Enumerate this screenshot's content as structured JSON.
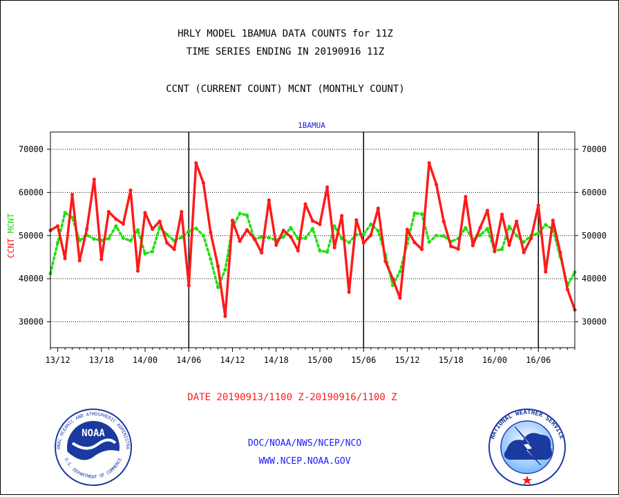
{
  "header": {
    "title_line1": "HRLY MODEL 1BAMUA DATA COUNTS for 11Z",
    "title_line2": "TIME SERIES ENDING IN 20190916 11Z",
    "subtitle": "CCNT (CURRENT COUNT) MCNT (MONTHLY COUNT)"
  },
  "footer": {
    "date_range": "DATE 20190913/1100 Z-20190916/1100 Z",
    "org": "DOC/NOAA/NWS/NCEP/NCO",
    "url": "WWW.NCEP.NOAA.GOV"
  },
  "logos": {
    "noaa_text": "NOAA",
    "noaa_ring_top": "NATIONAL OCEANIC AND ATMOSPHERIC ADMINISTRATION",
    "noaa_ring_bottom": "U.S. DEPARTMENT OF COMMERCE",
    "nws_ring": "NATIONAL WEATHER SERVICE"
  },
  "colors": {
    "ccnt": "#ff1a1a",
    "mcnt": "#22dd11",
    "title": "#000000",
    "date_text": "#ff1a1a",
    "footer_text": "#1a1aff",
    "plot_title": "#1a1acc"
  },
  "chart_data": {
    "type": "line",
    "title": "1BAMUA",
    "ylabel_parts": [
      "CCNT",
      "MCNT"
    ],
    "xlabel": "",
    "x_unit": "hours from 2019-09-13 11Z",
    "xlim": [
      0,
      72
    ],
    "ylim": [
      24000,
      74000
    ],
    "yticks": [
      30000,
      40000,
      50000,
      60000,
      70000
    ],
    "ytick_labels": [
      "30000",
      "40000",
      "50000",
      "60000",
      "70000"
    ],
    "xticks": [
      1,
      7,
      13,
      19,
      25,
      31,
      37,
      43,
      49,
      55,
      61,
      67
    ],
    "xtick_labels": [
      "13/12",
      "13/18",
      "14/00",
      "14/06",
      "14/12",
      "14/18",
      "15/00",
      "15/06",
      "15/12",
      "15/18",
      "16/00",
      "16/06"
    ],
    "day_boundaries": [
      19,
      43,
      67
    ],
    "grid": true,
    "series": [
      {
        "name": "CCNT",
        "style": "solid",
        "values": [
          51200,
          52200,
          44700,
          59500,
          44200,
          51500,
          63000,
          44500,
          55500,
          53800,
          52700,
          60500,
          41800,
          55300,
          51500,
          53300,
          48300,
          46800,
          55500,
          38400,
          66800,
          62200,
          50700,
          42900,
          31300,
          53500,
          48700,
          51300,
          49300,
          46000,
          58200,
          47800,
          51200,
          49700,
          46500,
          57300,
          53400,
          52600,
          61200,
          47200,
          54600,
          36900,
          53600,
          48300,
          50100,
          56300,
          44000,
          40000,
          35500,
          51400,
          48400,
          46800,
          66800,
          61800,
          53300,
          47500,
          46900,
          59000,
          47700,
          51800,
          55800,
          46300,
          54900,
          47800,
          53300,
          46100,
          49400,
          57000,
          41600,
          53500,
          46100,
          37500,
          32800
        ]
      },
      {
        "name": "MCNT",
        "style": "dotted",
        "values": [
          41200,
          48300,
          55300,
          54200,
          48800,
          50100,
          49200,
          48900,
          49300,
          52200,
          49400,
          48800,
          51300,
          45800,
          46300,
          52000,
          50200,
          48800,
          49600,
          51000,
          51700,
          50000,
          44500,
          38000,
          42100,
          52000,
          55100,
          54700,
          49100,
          49700,
          49500,
          48900,
          49700,
          51800,
          49300,
          49400,
          51600,
          46500,
          46200,
          52200,
          49300,
          48400,
          50200,
          50300,
          52600,
          51100,
          45500,
          38500,
          41700,
          48100,
          55200,
          55000,
          48500,
          50000,
          49900,
          48600,
          49300,
          51800,
          49100,
          50100,
          51600,
          46500,
          46800,
          52100,
          50000,
          48500,
          50000,
          50500,
          52500,
          51400,
          45200,
          38500,
          41500
        ]
      }
    ]
  }
}
